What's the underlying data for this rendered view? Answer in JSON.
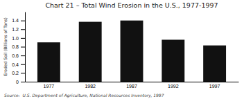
{
  "chart_data": {
    "type": "bar",
    "title": "Chart 21 – Total Wind Erosion in the U.S., 1977-1997",
    "categories": [
      "1977",
      "1982",
      "1987",
      "1992",
      "1997"
    ],
    "values": [
      0.9,
      1.37,
      1.4,
      0.96,
      0.83
    ],
    "color": "#111111",
    "ylabel": "Eroded Soil (Billions of Tons)",
    "annotations": [
      "Source:  U.S. Department of Agriculture, National Resources Inventory, 1997"
    ],
    "ylim": [
      0,
      1.6
    ],
    "yticks": [
      0,
      0.2,
      0.4,
      0.6,
      0.8,
      {
        "value": 1,
        "label": "1.0"
      },
      1.2,
      1.4
    ],
    "grid": false
  }
}
